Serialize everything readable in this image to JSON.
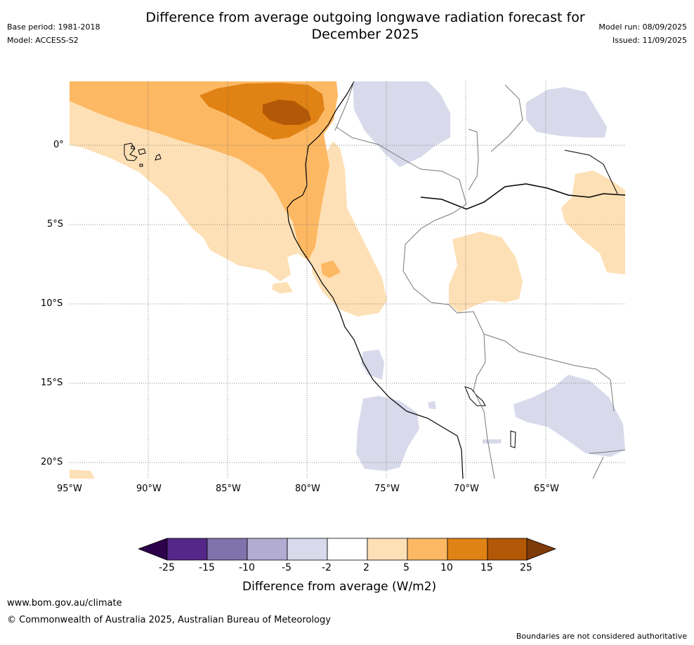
{
  "header": {
    "title_line1": "Difference from average outgoing longwave radiation forecast for",
    "title_line2": "December 2025",
    "base_period": "Base period: 1981-2018",
    "model": "Model: ACCESS-S2",
    "model_run": "Model run: 08/09/2025",
    "issued": "Issued: 11/09/2025"
  },
  "map": {
    "lat_labels": [
      "0°",
      "5°S",
      "10°S",
      "15°S",
      "20°S"
    ],
    "lon_labels": [
      "95°W",
      "90°W",
      "85°W",
      "80°W",
      "75°W",
      "70°W",
      "65°W"
    ],
    "lat_values": [
      0,
      -5,
      -10,
      -15,
      -20
    ],
    "lon_values": [
      -95,
      -90,
      -85,
      -80,
      -75,
      -70,
      -65
    ],
    "grid": "dotted",
    "extent": {
      "lon": [
        -95,
        -60
      ],
      "lat": [
        -21,
        4
      ]
    }
  },
  "colorbar": {
    "title": "Difference from average (W/m2)",
    "labels": [
      "-25",
      "-15",
      "-10",
      "-5",
      "-2",
      "2",
      "5",
      "10",
      "15",
      "25"
    ],
    "colors": [
      "#542788",
      "#8073ac",
      "#b2abd2",
      "#d8daeb",
      "#ffffff",
      "#fee0b6",
      "#fdb863",
      "#e08214",
      "#b35806"
    ],
    "extend_low_color": "#2d004b",
    "extend_high_color": "#7f3b08"
  },
  "footer": {
    "url": "www.bom.gov.au/climate",
    "copyright": "© Commonwealth of Australia 2025, Australian Bureau of Meteorology",
    "disclaimer": "Boundaries are not considered authoritative"
  }
}
